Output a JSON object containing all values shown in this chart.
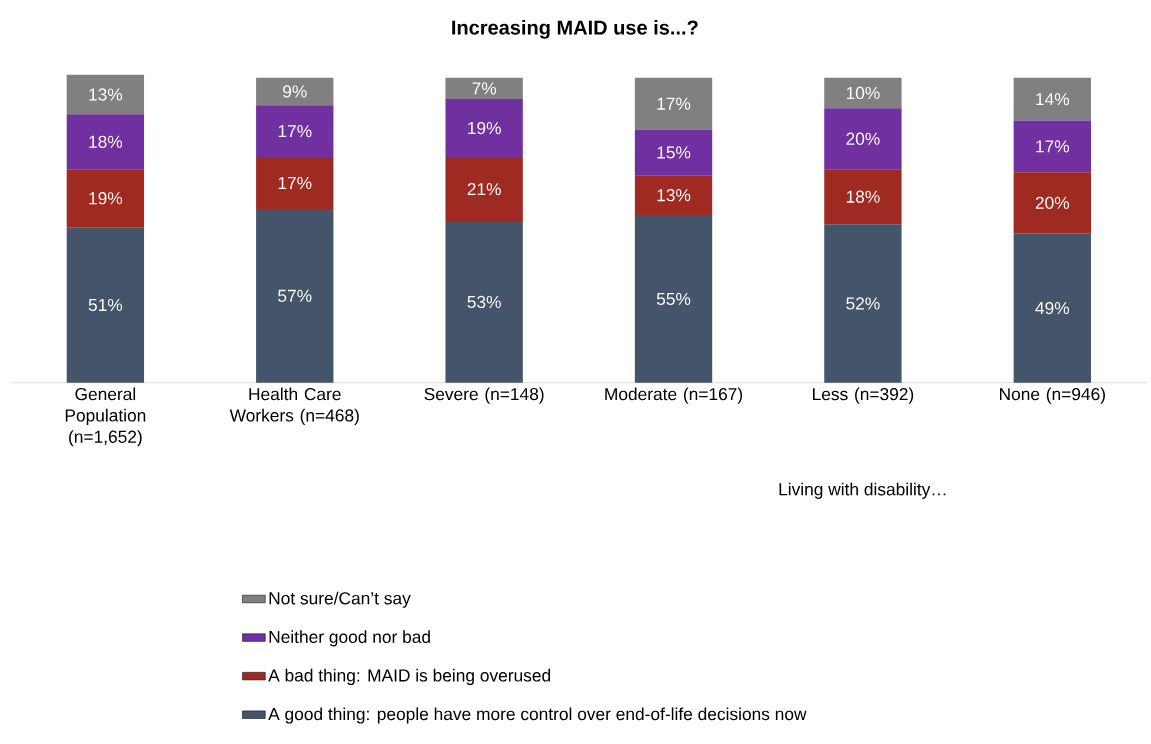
{
  "chart_data": {
    "type": "bar",
    "stacked": true,
    "title": "Increasing MAID use is...?",
    "categories": [
      "General Population (n=1,652)",
      "Health Care Workers (n=468)",
      "Severe (n=148)",
      "Moderate (n=167)",
      "Less (n=392)",
      "None (n=946)"
    ],
    "series": [
      {
        "name": "A good thing: people have more control over end-of-life decisions now",
        "color": "#44546a",
        "values": [
          51,
          57,
          53,
          55,
          52,
          49
        ],
        "value_labels": [
          "51%",
          "57%",
          "53%",
          "55%",
          "52%",
          "49%"
        ]
      },
      {
        "name": "A bad thing: MAID is being overused",
        "color": "#9e2a22",
        "values": [
          19,
          17,
          21,
          13,
          18,
          20
        ],
        "value_labels": [
          "19%",
          "17%",
          "21%",
          "13%",
          "18%",
          "20%"
        ]
      },
      {
        "name": "Neither good nor bad",
        "color": "#7030a0",
        "values": [
          18,
          17,
          19,
          15,
          20,
          17
        ],
        "value_labels": [
          "18%",
          "17%",
          "19%",
          "15%",
          "20%",
          "17%"
        ]
      },
      {
        "name": "Not sure/Can’t say",
        "color": "#808080",
        "values": [
          13,
          9,
          7,
          17,
          10,
          14
        ],
        "value_labels": [
          "13%",
          "9%",
          "7%",
          "17%",
          "10%",
          "14%"
        ]
      }
    ],
    "legend": "bottom",
    "annotations": [
      "Living with disability…"
    ]
  }
}
